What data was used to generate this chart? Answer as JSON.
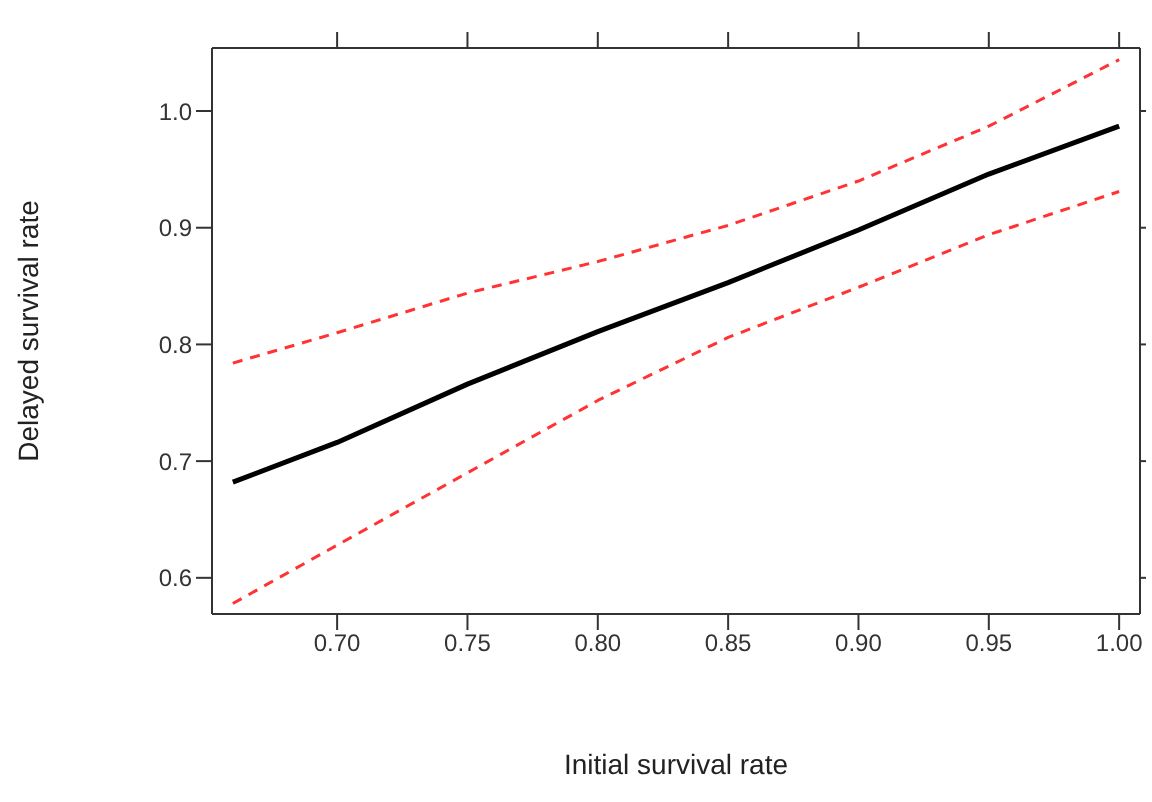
{
  "chart_data": {
    "type": "line",
    "xlabel": "Initial survival rate",
    "ylabel": "Delayed survival rate",
    "x": [
      0.66,
      0.7,
      0.75,
      0.8,
      0.85,
      0.9,
      0.95,
      1.0
    ],
    "series": [
      {
        "color": "#000000",
        "line_style": "solid",
        "values": [
          0.682,
          0.716,
          0.766,
          0.811,
          0.853,
          0.898,
          0.946,
          0.987
        ]
      },
      {
        "color": "#ff3333",
        "line_style": "dashed",
        "values": [
          0.784,
          0.81,
          0.844,
          0.871,
          0.902,
          0.94,
          0.987,
          1.044
        ]
      },
      {
        "color": "#ff3333",
        "line_style": "dashed",
        "values": [
          0.578,
          0.628,
          0.69,
          0.752,
          0.806,
          0.849,
          0.894,
          0.931
        ]
      }
    ],
    "xlim": [
      0.652,
      1.008
    ],
    "ylim": [
      0.569,
      1.054
    ],
    "xticks": [
      {
        "value": 0.7,
        "label": "0.70"
      },
      {
        "value": 0.75,
        "label": "0.75"
      },
      {
        "value": 0.8,
        "label": "0.80"
      },
      {
        "value": 0.85,
        "label": "0.85"
      },
      {
        "value": 0.9,
        "label": "0.90"
      },
      {
        "value": 0.95,
        "label": "0.95"
      },
      {
        "value": 1,
        "label": "1.00"
      }
    ],
    "yticks": [
      0.6,
      0.7,
      0.8,
      0.9,
      {
        "value": 1,
        "label": "1.0"
      }
    ],
    "grid": false,
    "legend": false,
    "marker": "none"
  }
}
